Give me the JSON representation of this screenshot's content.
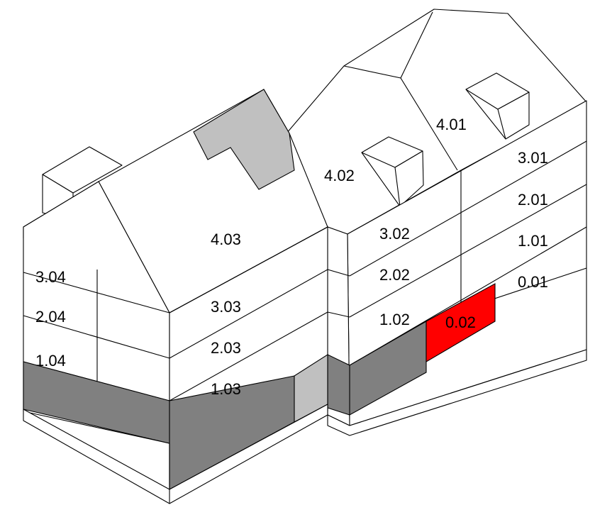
{
  "colors": {
    "background": "#ffffff",
    "outline": "#000000",
    "basement_dark": "#808080",
    "light_gray": "#c0c0c0",
    "highlight": "#ff0000"
  },
  "highlighted_unit": "0.02",
  "units": {
    "u401": "4.01",
    "u301": "3.01",
    "u201": "2.01",
    "u101": "1.01",
    "u001": "0.01",
    "u402": "4.02",
    "u302": "3.02",
    "u202": "2.02",
    "u102": "1.02",
    "u002": "0.02",
    "u403": "4.03",
    "u303": "3.03",
    "u203": "2.03",
    "u103": "1.03",
    "u304": "3.04",
    "u204": "2.04",
    "u104": "1.04"
  }
}
